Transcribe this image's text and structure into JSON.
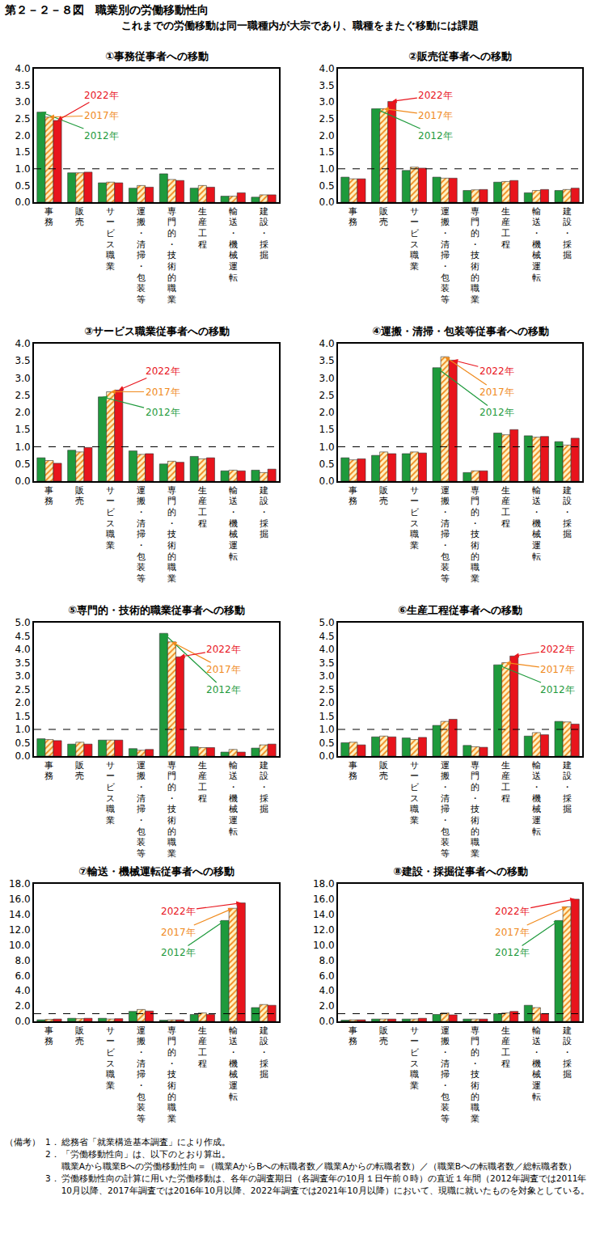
{
  "title": "第２－２－８図　職業別の労働移動性向",
  "subtitle": "これまでの労働移動は同一職種内が大宗であり、職種をまたぐ移動には課題",
  "notes": {
    "label": "（備考）",
    "items": [
      {
        "number": "1．",
        "text": "総務省「就業構造基本調査」により作成。"
      },
      {
        "number": "2．",
        "text": "「労働移動性向」は、以下のとおり算出。",
        "formula": "職業Aから職業Bへの労働移動性向＝（職業AからBへの転職者数／職業Aからの転職者数）／（職業Bへの転職者数／総転職者数）"
      },
      {
        "number": "3．",
        "text": "労働移動性向の計算に用いた労働移動は、各年の調査期日（各調査年の10月１日午前０時）の直近１年間（2012年調査では2011年10月以降、2017年調査では2016年10月以降、2022年調査では2021年10月以降）において、現職に就いたものを対象としている。"
      }
    ]
  },
  "chart_data": [
    {
      "type": "bar",
      "title": "①事務従事者への移動",
      "categories": [
        "事務",
        "販売",
        "サービス職業",
        "運搬・清掃・包装等",
        "専門的・技術的職業",
        "生産工程",
        "輸送・機械運転",
        "建設・採掘"
      ],
      "series": [
        {
          "name": "2012年",
          "color": "#1e9a3c",
          "values": [
            2.7,
            0.88,
            0.58,
            0.42,
            0.85,
            0.42,
            0.18,
            0.15
          ]
        },
        {
          "name": "2017年",
          "color": "#f08a1c",
          "marker": "hatched",
          "values": [
            2.55,
            0.88,
            0.6,
            0.5,
            0.68,
            0.5,
            0.18,
            0.22
          ]
        },
        {
          "name": "2022年",
          "color": "#e8141c",
          "values": [
            2.45,
            0.9,
            0.58,
            0.45,
            0.65,
            0.45,
            0.28,
            0.22
          ]
        }
      ],
      "ylim": [
        0,
        4
      ],
      "yticks": [
        {
          "value": 0,
          "label": "0.0"
        },
        0.5,
        {
          "value": 1,
          "label": "1.0"
        },
        1.5,
        {
          "value": 2,
          "label": "2.0"
        },
        2.5,
        {
          "value": 3,
          "label": "3.0"
        },
        3.5,
        {
          "value": 4,
          "label": "4.0"
        }
      ],
      "reference_line": 1,
      "grid": false
    },
    {
      "type": "bar",
      "title": "②販売従事者への移動",
      "categories": [
        "事務",
        "販売",
        "サービス職業",
        "運搬・清掃・包装等",
        "専門的・技術的職業",
        "生産工程",
        "輸送・機械運転",
        "建設・採掘"
      ],
      "series": [
        {
          "name": "2012年",
          "color": "#1e9a3c",
          "values": [
            0.75,
            2.8,
            0.95,
            0.75,
            0.35,
            0.6,
            0.28,
            0.35
          ]
        },
        {
          "name": "2017年",
          "color": "#f08a1c",
          "marker": "hatched",
          "values": [
            0.7,
            2.8,
            1.05,
            0.72,
            0.37,
            0.62,
            0.35,
            0.38
          ]
        },
        {
          "name": "2022年",
          "color": "#e8141c",
          "values": [
            0.7,
            3.02,
            1.02,
            0.72,
            0.38,
            0.65,
            0.38,
            0.42
          ]
        }
      ],
      "ylim": [
        0,
        4
      ],
      "yticks": [
        {
          "value": 0,
          "label": "0.0"
        },
        0.5,
        {
          "value": 1,
          "label": "1.0"
        },
        1.5,
        {
          "value": 2,
          "label": "2.0"
        },
        2.5,
        {
          "value": 3,
          "label": "3.0"
        },
        3.5,
        {
          "value": 4,
          "label": "4.0"
        }
      ],
      "reference_line": 1,
      "grid": false
    },
    {
      "type": "bar",
      "title": "③サービス職業従事者への移動",
      "categories": [
        "事務",
        "販売",
        "サービス職業",
        "運搬・清掃・包装等",
        "専門的・技術的職業",
        "生産工程",
        "輸送・機械運転",
        "建設・採掘"
      ],
      "series": [
        {
          "name": "2012年",
          "color": "#1e9a3c",
          "values": [
            0.68,
            0.9,
            2.45,
            0.88,
            0.5,
            0.72,
            0.3,
            0.32
          ]
        },
        {
          "name": "2017年",
          "color": "#f08a1c",
          "marker": "hatched",
          "values": [
            0.6,
            0.85,
            2.6,
            0.78,
            0.58,
            0.65,
            0.32,
            0.25
          ]
        },
        {
          "name": "2022年",
          "color": "#e8141c",
          "values": [
            0.52,
            0.98,
            2.65,
            0.8,
            0.55,
            0.68,
            0.3,
            0.35
          ]
        }
      ],
      "ylim": [
        0,
        4
      ],
      "yticks": [
        {
          "value": 0,
          "label": "0.0"
        },
        0.5,
        {
          "value": 1,
          "label": "1.0"
        },
        1.5,
        {
          "value": 2,
          "label": "2.0"
        },
        2.5,
        {
          "value": 3,
          "label": "3.0"
        },
        3.5,
        {
          "value": 4,
          "label": "4.0"
        }
      ],
      "reference_line": 1,
      "grid": false
    },
    {
      "type": "bar",
      "title": "④運搬・清掃・包装等従事者への移動",
      "categories": [
        "事務",
        "販売",
        "サービス職業",
        "運搬・清掃・包装等",
        "専門的・技術的職業",
        "生産工程",
        "輸送・機械運転",
        "建設・採掘"
      ],
      "series": [
        {
          "name": "2012年",
          "color": "#1e9a3c",
          "values": [
            0.68,
            0.75,
            0.8,
            3.3,
            0.25,
            1.4,
            1.32,
            1.15
          ]
        },
        {
          "name": "2017年",
          "color": "#f08a1c",
          "marker": "hatched",
          "values": [
            0.62,
            0.85,
            0.85,
            3.62,
            0.3,
            1.35,
            1.28,
            1.05
          ]
        },
        {
          "name": "2022年",
          "color": "#e8141c",
          "values": [
            0.65,
            0.8,
            0.82,
            3.52,
            0.3,
            1.5,
            1.3,
            1.25
          ]
        }
      ],
      "ylim": [
        0,
        4
      ],
      "yticks": [
        {
          "value": 0,
          "label": "0.0"
        },
        0.5,
        {
          "value": 1,
          "label": "1.0"
        },
        1.5,
        {
          "value": 2,
          "label": "2.0"
        },
        2.5,
        {
          "value": 3,
          "label": "3.0"
        },
        3.5,
        {
          "value": 4,
          "label": "4.0"
        }
      ],
      "reference_line": 1,
      "grid": false
    },
    {
      "type": "bar",
      "title": "⑤専門的・技術的職業従事者への移動",
      "categories": [
        "事務",
        "販売",
        "サービス職業",
        "運搬・清掃・包装等",
        "専門的・技術的職業",
        "生産工程",
        "輸送・機械運転",
        "建設・採掘"
      ],
      "series": [
        {
          "name": "2012年",
          "color": "#1e9a3c",
          "values": [
            0.65,
            0.45,
            0.6,
            0.28,
            4.6,
            0.35,
            0.15,
            0.3
          ]
        },
        {
          "name": "2017年",
          "color": "#f08a1c",
          "marker": "hatched",
          "values": [
            0.62,
            0.52,
            0.6,
            0.22,
            4.28,
            0.32,
            0.25,
            0.42
          ]
        },
        {
          "name": "2022年",
          "color": "#e8141c",
          "values": [
            0.58,
            0.45,
            0.6,
            0.25,
            3.72,
            0.32,
            0.15,
            0.45
          ]
        }
      ],
      "ylim": [
        0,
        5
      ],
      "yticks": [
        {
          "value": 0,
          "label": "0.0"
        },
        0.5,
        {
          "value": 1,
          "label": "1.0"
        },
        1.5,
        {
          "value": 2,
          "label": "2.0"
        },
        2.5,
        {
          "value": 3,
          "label": "3.0"
        },
        3.5,
        {
          "value": 4,
          "label": "4.0"
        },
        4.5,
        {
          "value": 5,
          "label": "5.0"
        }
      ],
      "reference_line": 1,
      "grid": false
    },
    {
      "type": "bar",
      "title": "⑥生産工程従事者への移動",
      "categories": [
        "事務",
        "販売",
        "サービス職業",
        "運搬・清掃・包装等",
        "専門的・技術的職業",
        "生産工程",
        "輸送・機械運転",
        "建設・採掘"
      ],
      "series": [
        {
          "name": "2012年",
          "color": "#1e9a3c",
          "values": [
            0.5,
            0.72,
            0.68,
            1.15,
            0.4,
            3.42,
            0.75,
            1.3
          ]
        },
        {
          "name": "2017年",
          "color": "#f08a1c",
          "marker": "hatched",
          "values": [
            0.52,
            0.75,
            0.62,
            1.3,
            0.35,
            3.5,
            0.88,
            1.28
          ]
        },
        {
          "name": "2022年",
          "color": "#e8141c",
          "values": [
            0.42,
            0.72,
            0.7,
            1.38,
            0.33,
            3.75,
            0.8,
            1.2
          ]
        }
      ],
      "ylim": [
        0,
        5
      ],
      "yticks": [
        {
          "value": 0,
          "label": "0.0"
        },
        0.5,
        {
          "value": 1,
          "label": "1.0"
        },
        1.5,
        {
          "value": 2,
          "label": "2.0"
        },
        2.5,
        {
          "value": 3,
          "label": "3.0"
        },
        3.5,
        {
          "value": 4,
          "label": "4.0"
        },
        4.5,
        {
          "value": 5,
          "label": "5.0"
        }
      ],
      "reference_line": 1,
      "grid": false
    },
    {
      "type": "bar",
      "title": "⑦輸送・機械運転従事者への移動",
      "categories": [
        "事務",
        "販売",
        "サービス職業",
        "運搬・清掃・包装等",
        "専門的・技術的職業",
        "生産工程",
        "輸送・機械運転",
        "建設・採掘"
      ],
      "series": [
        {
          "name": "2012年",
          "color": "#1e9a3c",
          "values": [
            0.2,
            0.4,
            0.4,
            1.3,
            0.15,
            0.9,
            13.2,
            1.8
          ]
        },
        {
          "name": "2017年",
          "color": "#f08a1c",
          "marker": "hatched",
          "values": [
            0.25,
            0.35,
            0.3,
            1.55,
            0.2,
            1.1,
            14.8,
            2.2
          ]
        },
        {
          "name": "2022年",
          "color": "#e8141c",
          "values": [
            0.3,
            0.4,
            0.35,
            1.35,
            0.2,
            0.9,
            15.5,
            2.1
          ]
        }
      ],
      "ylim": [
        0,
        18
      ],
      "yticks": [
        {
          "value": 0,
          "label": "0.0"
        },
        {
          "value": 2,
          "label": "2.0"
        },
        {
          "value": 4,
          "label": "4.0"
        },
        {
          "value": 6,
          "label": "6.0"
        },
        {
          "value": 8,
          "label": "8.0"
        },
        {
          "value": 10,
          "label": "10.0"
        },
        {
          "value": 12,
          "label": "12.0"
        },
        {
          "value": 14,
          "label": "14.0"
        },
        {
          "value": 16,
          "label": "16.0"
        },
        {
          "value": 18,
          "label": "18.0"
        }
      ],
      "reference_line": 1,
      "grid": false
    },
    {
      "type": "bar",
      "title": "⑧建設・採掘従事者への移動",
      "categories": [
        "事務",
        "販売",
        "サービス職業",
        "運搬・清掃・包装等",
        "専門的・技術的職業",
        "生産工程",
        "輸送・機械運転",
        "建設・採掘"
      ],
      "series": [
        {
          "name": "2012年",
          "color": "#1e9a3c",
          "values": [
            0.15,
            0.3,
            0.3,
            0.9,
            0.3,
            1.0,
            2.1,
            13.2
          ]
        },
        {
          "name": "2017年",
          "color": "#f08a1c",
          "marker": "hatched",
          "values": [
            0.2,
            0.3,
            0.3,
            1.1,
            0.3,
            1.1,
            1.8,
            15.0
          ]
        },
        {
          "name": "2022年",
          "color": "#e8141c",
          "values": [
            0.2,
            0.3,
            0.4,
            0.85,
            0.3,
            1.3,
            1.0,
            16.0
          ]
        }
      ],
      "ylim": [
        0,
        18
      ],
      "yticks": [
        {
          "value": 0,
          "label": "0.0"
        },
        {
          "value": 2,
          "label": "2.0"
        },
        {
          "value": 4,
          "label": "4.0"
        },
        {
          "value": 6,
          "label": "6.0"
        },
        {
          "value": 8,
          "label": "8.0"
        },
        {
          "value": 10,
          "label": "10.0"
        },
        {
          "value": 12,
          "label": "12.0"
        },
        {
          "value": 14,
          "label": "14.0"
        },
        {
          "value": 16,
          "label": "16.0"
        },
        {
          "value": 18,
          "label": "18.0"
        }
      ],
      "reference_line": 1,
      "grid": false
    }
  ]
}
